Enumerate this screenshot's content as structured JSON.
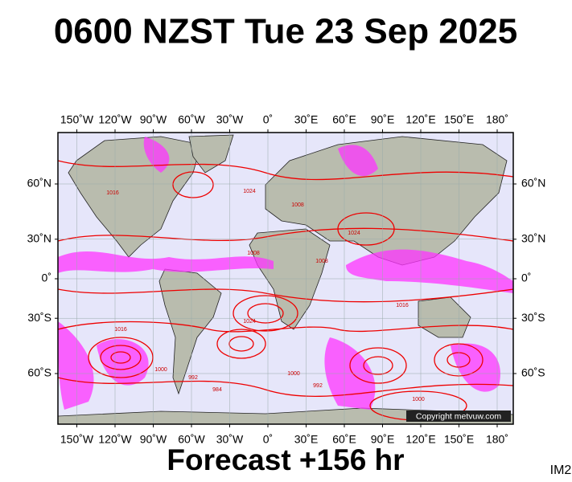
{
  "header": {
    "title": "0600 NZST Tue 23 Sep 2025"
  },
  "map": {
    "lon_ticks": [
      {
        "value": -150,
        "label": "150˚W"
      },
      {
        "value": -120,
        "label": "120˚W"
      },
      {
        "value": -90,
        "label": "90˚W"
      },
      {
        "value": -60,
        "label": "60˚W"
      },
      {
        "value": -30,
        "label": "30˚W"
      },
      {
        "value": 0,
        "label": "0˚"
      },
      {
        "value": 30,
        "label": "30˚E"
      },
      {
        "value": 60,
        "label": "60˚E"
      },
      {
        "value": 90,
        "label": "90˚E"
      },
      {
        "value": 120,
        "label": "120˚E"
      },
      {
        "value": 150,
        "label": "150˚E"
      },
      {
        "value": 180,
        "label": "180˚"
      }
    ],
    "lat_ticks": [
      {
        "value": 60,
        "label": "60˚N"
      },
      {
        "value": 30,
        "label": "30˚N"
      },
      {
        "value": 0,
        "label": "0˚"
      },
      {
        "value": -30,
        "label": "30˚S"
      },
      {
        "value": -60,
        "label": "60˚S"
      }
    ],
    "isobar_labels": [
      "1024",
      "1008",
      "1016",
      "1008",
      "1024",
      "1008",
      "1016",
      "1000",
      "992",
      "1024",
      "1000",
      "992",
      "1016",
      "1000",
      "984"
    ],
    "copyright": "Copyright metvuw.com"
  },
  "footer": {
    "forecast": "Forecast +156 hr",
    "image_id": "IM2"
  }
}
